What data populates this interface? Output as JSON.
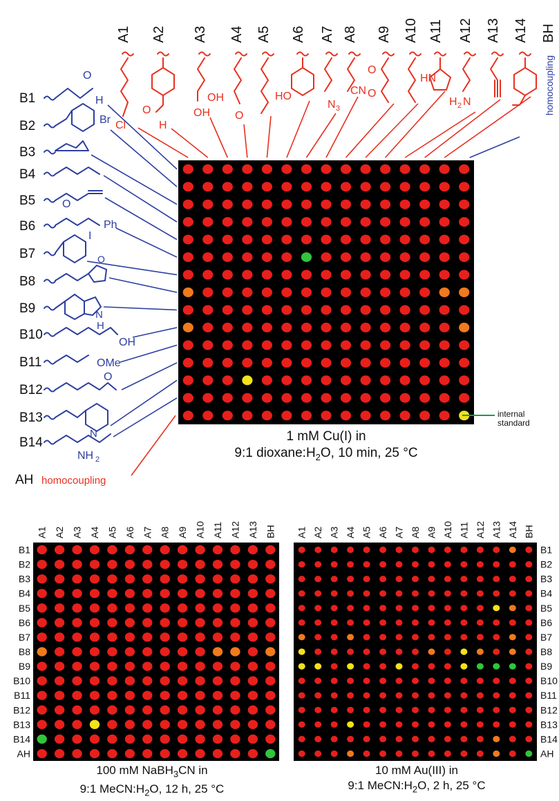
{
  "colors": {
    "spot_red": "#e8201c",
    "spot_orange": "#f07a1e",
    "spot_yellow": "#f2e21a",
    "spot_green": "#33c43a",
    "a_series_red": "#e8301f",
    "b_series_blue": "#2d3fa0",
    "standard_green": "#1e9a4a"
  },
  "top_labels": {
    "a_columns": [
      "A1",
      "A2",
      "A3",
      "A4",
      "A5",
      "A6",
      "A7",
      "A8",
      "A9",
      "A10",
      "A11",
      "A12",
      "A13",
      "A14"
    ],
    "bh": "BH",
    "bh_note": "homocoupling",
    "b_rows": [
      "B1",
      "B2",
      "B3",
      "B4",
      "B5",
      "B6",
      "B7",
      "B8",
      "B9",
      "B10",
      "B11",
      "B12",
      "B13",
      "B14"
    ],
    "ah": "AH",
    "ah_note": "homocoupling"
  },
  "a_structures": [
    {
      "id": "A1",
      "text": "Cl"
    },
    {
      "id": "A2",
      "text": "O=·H"
    },
    {
      "id": "A3",
      "text": "OH OH"
    },
    {
      "id": "A4",
      "text": "O"
    },
    {
      "id": "A5",
      "text": ""
    },
    {
      "id": "A6",
      "text": "HO"
    },
    {
      "id": "A7",
      "text": "N3"
    },
    {
      "id": "A8",
      "text": "CN"
    },
    {
      "id": "A9",
      "text": "O O"
    },
    {
      "id": "A10",
      "text": ""
    },
    {
      "id": "A11",
      "text": "HN"
    },
    {
      "id": "A12",
      "text": "H2N"
    },
    {
      "id": "A13",
      "text": ""
    },
    {
      "id": "A14",
      "text": ""
    }
  ],
  "b_structures": [
    {
      "id": "B1",
      "text": "O H"
    },
    {
      "id": "B2",
      "text": "Br"
    },
    {
      "id": "B3",
      "text": ""
    },
    {
      "id": "B4",
      "text": ""
    },
    {
      "id": "B5",
      "text": ""
    },
    {
      "id": "B6",
      "text": "O Ph"
    },
    {
      "id": "B7",
      "text": "I"
    },
    {
      "id": "B8",
      "text": "O"
    },
    {
      "id": "B9",
      "text": "N H"
    },
    {
      "id": "B10",
      "text": "OH"
    },
    {
      "id": "B11",
      "text": "OMe"
    },
    {
      "id": "B12",
      "text": "O"
    },
    {
      "id": "B13",
      "text": "N"
    },
    {
      "id": "B14",
      "text": "NH2"
    }
  ],
  "main_panel": {
    "caption_line1": "1 mM Cu(I) in",
    "caption_line2_pre": "9:1 dioxane:H",
    "caption_line2_sub": "2",
    "caption_line2_post": "O, 10 min, 25 °C",
    "internal_standard_line1": "internal",
    "internal_standard_line2": "standard",
    "special_spots": [
      {
        "row": "B6",
        "col": "A7",
        "color": "green"
      },
      {
        "row": "B13",
        "col": "A4",
        "color": "yellow"
      },
      {
        "row": "AH",
        "col": "BH",
        "color": "yellow"
      },
      {
        "row": "B8",
        "col": "A1",
        "color": "orange"
      },
      {
        "row": "B8",
        "col": "A14",
        "color": "orange"
      },
      {
        "row": "B8",
        "col": "BH",
        "color": "orange"
      },
      {
        "row": "B10",
        "col": "A1",
        "color": "orange"
      },
      {
        "row": "B10",
        "col": "BH",
        "color": "orange"
      }
    ]
  },
  "left_panel": {
    "col_labels": [
      "A1",
      "A2",
      "A3",
      "A4",
      "A5",
      "A6",
      "A7",
      "A8",
      "A9",
      "A10",
      "A11",
      "A12",
      "A13",
      "BH"
    ],
    "row_labels": [
      "B1",
      "B2",
      "B3",
      "B4",
      "B5",
      "B6",
      "B7",
      "B8",
      "B9",
      "B10",
      "B11",
      "B12",
      "B13",
      "B14",
      "AH"
    ],
    "caption_line1": "100 mM NaBH",
    "caption_line1_sub": "3",
    "caption_line1_post": "CN in",
    "caption_line2_pre": "9:1 MeCN:H",
    "caption_line2_sub": "2",
    "caption_line2_post": "O, 12 h, 25 °C",
    "special_spots": [
      {
        "row": "B14",
        "col": "A1",
        "color": "green"
      },
      {
        "row": "AH",
        "col": "BH",
        "color": "green"
      },
      {
        "row": "B13",
        "col": "A4",
        "color": "yellow"
      },
      {
        "row": "B8",
        "col": "A1",
        "color": "orange"
      },
      {
        "row": "B8",
        "col": "A11",
        "color": "orange"
      },
      {
        "row": "B8",
        "col": "A12",
        "color": "orange"
      },
      {
        "row": "B8",
        "col": "BH",
        "color": "orange"
      }
    ]
  },
  "right_panel": {
    "col_labels": [
      "A1",
      "A2",
      "A3",
      "A4",
      "A5",
      "A6",
      "A7",
      "A8",
      "A9",
      "A10",
      "A11",
      "A12",
      "A13",
      "A14",
      "BH"
    ],
    "row_labels": [
      "B1",
      "B2",
      "B3",
      "B4",
      "B5",
      "B6",
      "B7",
      "B8",
      "B9",
      "B10",
      "B11",
      "B12",
      "B13",
      "B14",
      "AH"
    ],
    "caption_line1": "10 mM Au(III) in",
    "caption_line2_pre": "9:1 MeCN:H",
    "caption_line2_sub": "2",
    "caption_line2_post": "O, 2 h, 25 °C",
    "special_spots": [
      {
        "row": "B9",
        "col": "A12",
        "color": "green"
      },
      {
        "row": "B9",
        "col": "A13",
        "color": "green"
      },
      {
        "row": "B9",
        "col": "A14",
        "color": "green"
      },
      {
        "row": "AH",
        "col": "BH",
        "color": "green"
      },
      {
        "row": "B9",
        "col": "A11",
        "color": "yellow"
      },
      {
        "row": "B8",
        "col": "A1",
        "color": "yellow"
      },
      {
        "row": "B8",
        "col": "A11",
        "color": "yellow"
      },
      {
        "row": "B9",
        "col": "A1",
        "color": "yellow"
      },
      {
        "row": "B9",
        "col": "A2",
        "color": "yellow"
      },
      {
        "row": "B9",
        "col": "A4",
        "color": "yellow"
      },
      {
        "row": "B9",
        "col": "A7",
        "color": "yellow"
      },
      {
        "row": "B13",
        "col": "A4",
        "color": "yellow"
      },
      {
        "row": "B5",
        "col": "A13",
        "color": "yellow"
      },
      {
        "row": "B1",
        "col": "A14",
        "color": "orange"
      },
      {
        "row": "B5",
        "col": "A14",
        "color": "orange"
      },
      {
        "row": "B7",
        "col": "A1",
        "color": "orange"
      },
      {
        "row": "B7",
        "col": "A4",
        "color": "orange"
      },
      {
        "row": "B7",
        "col": "A14",
        "color": "orange"
      },
      {
        "row": "B8",
        "col": "A9",
        "color": "orange"
      },
      {
        "row": "B8",
        "col": "A12",
        "color": "orange"
      },
      {
        "row": "B8",
        "col": "A14",
        "color": "orange"
      },
      {
        "row": "B14",
        "col": "A13",
        "color": "orange"
      },
      {
        "row": "AH",
        "col": "A4",
        "color": "orange"
      },
      {
        "row": "AH",
        "col": "A13",
        "color": "orange"
      }
    ]
  }
}
